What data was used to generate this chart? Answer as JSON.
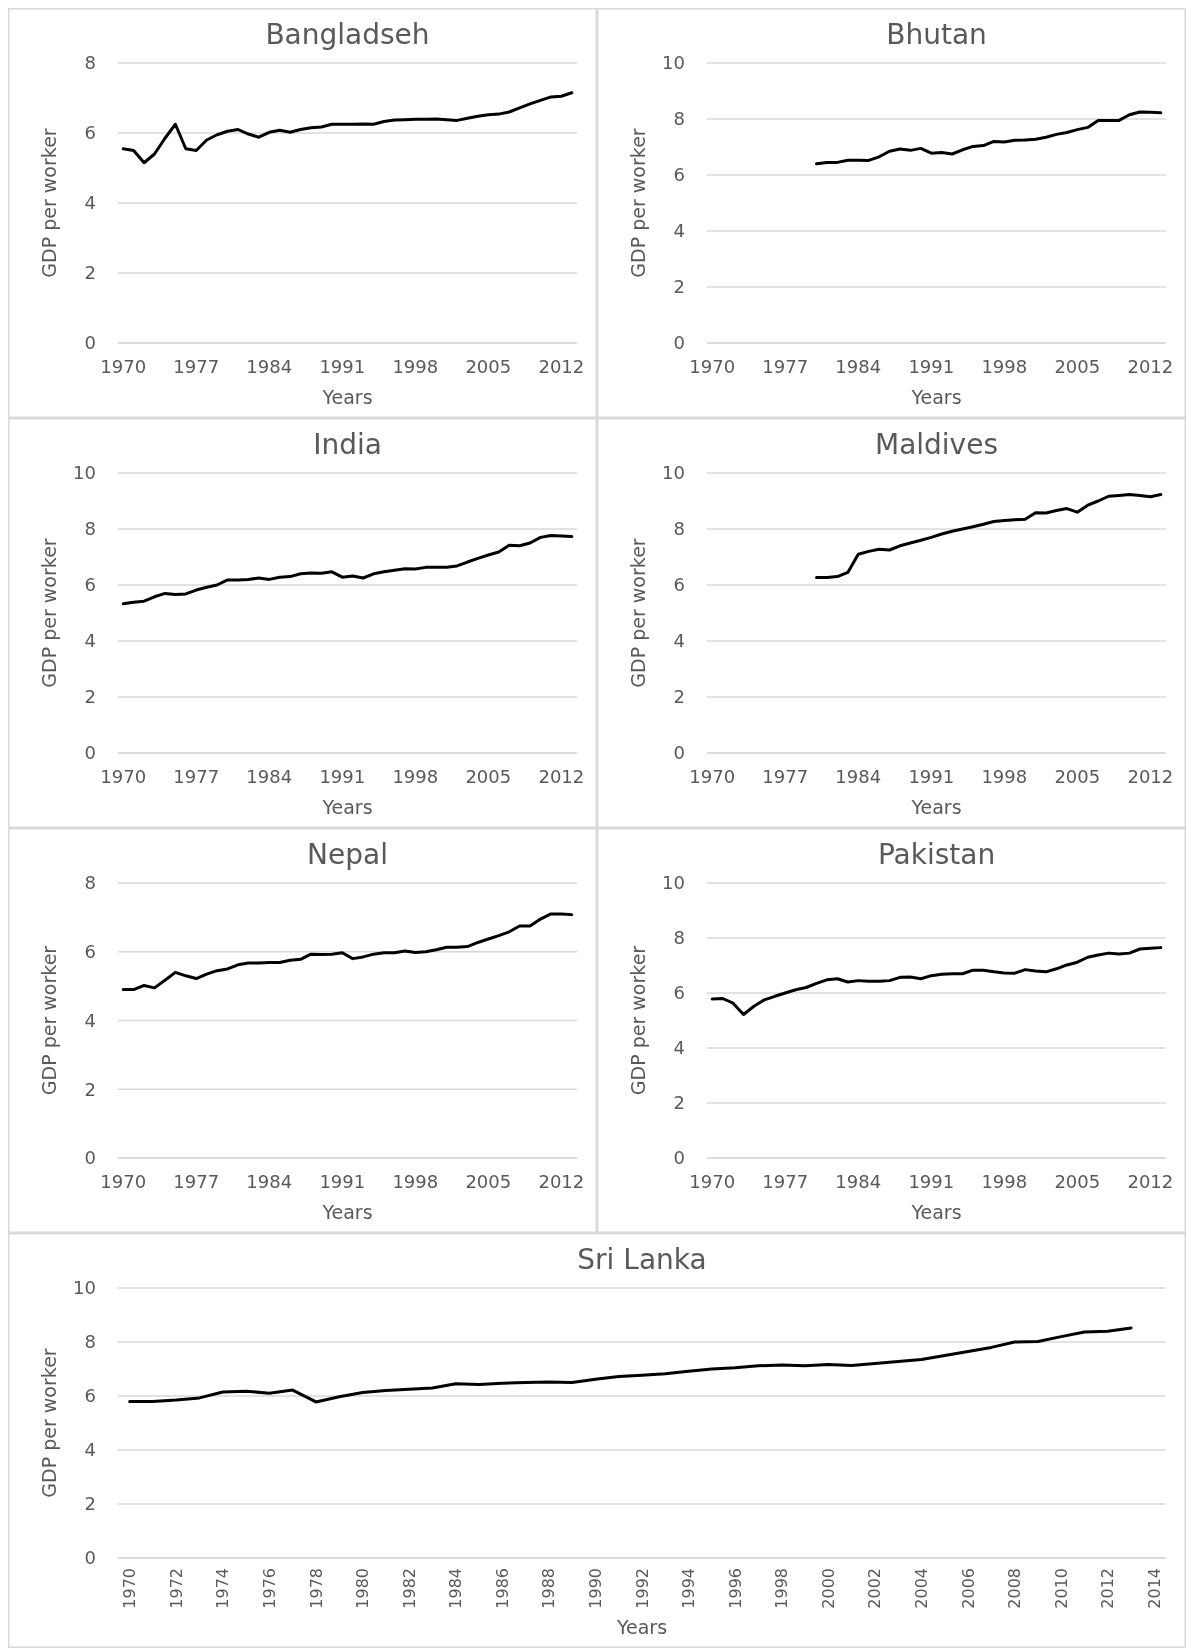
{
  "chart_data": [
    {
      "type": "line",
      "title": "Bangladseh",
      "xlabel": "Years",
      "ylabel": "GDP per worker",
      "x": [
        1970,
        1971,
        1972,
        1973,
        1974,
        1975,
        1976,
        1977,
        1978,
        1979,
        1980,
        1981,
        1982,
        1983,
        1984,
        1985,
        1986,
        1987,
        1988,
        1989,
        1990,
        1991,
        1992,
        1993,
        1994,
        1995,
        1996,
        1997,
        1998,
        1999,
        2000,
        2001,
        2002,
        2003,
        2004,
        2005,
        2006,
        2007,
        2008,
        2009,
        2010,
        2011,
        2012,
        2013
      ],
      "series": [
        {
          "color": "#000000",
          "values": [
            5.55,
            5.5,
            5.15,
            5.4,
            5.85,
            6.25,
            5.55,
            5.5,
            5.8,
            5.95,
            6.05,
            6.1,
            5.97,
            5.88,
            6.02,
            6.08,
            6.02,
            6.1,
            6.15,
            6.17,
            6.25,
            6.25,
            6.25,
            6.26,
            6.25,
            6.33,
            6.37,
            6.38,
            6.39,
            6.39,
            6.4,
            6.38,
            6.36,
            6.42,
            6.48,
            6.52,
            6.54,
            6.6,
            6.72,
            6.83,
            6.93,
            7.03,
            7.05,
            7.15
          ]
        }
      ],
      "xlim": [
        1969.5,
        2013.5
      ],
      "xticks": [
        1970,
        1977,
        1984,
        1991,
        1998,
        2005,
        2012
      ],
      "ylim": [
        0,
        8
      ],
      "yticks": [
        0,
        2,
        4,
        6,
        8
      ],
      "grid": "y",
      "legend": false
    },
    {
      "type": "line",
      "title": "Bhutan",
      "xlabel": "Years",
      "ylabel": "GDP per worker",
      "x": [
        1980,
        1981,
        1982,
        1983,
        1984,
        1985,
        1986,
        1987,
        1988,
        1989,
        1990,
        1991,
        1992,
        1993,
        1994,
        1995,
        1996,
        1997,
        1998,
        1999,
        2000,
        2001,
        2002,
        2003,
        2004,
        2005,
        2006,
        2007,
        2008,
        2009,
        2010,
        2011,
        2012,
        2013
      ],
      "series": [
        {
          "color": "#000000",
          "values": [
            6.4,
            6.45,
            6.45,
            6.53,
            6.53,
            6.52,
            6.65,
            6.85,
            6.93,
            6.88,
            6.95,
            6.78,
            6.8,
            6.75,
            6.9,
            7.02,
            7.05,
            7.2,
            7.18,
            7.24,
            7.25,
            7.28,
            7.35,
            7.45,
            7.52,
            7.62,
            7.7,
            7.95,
            7.95,
            7.95,
            8.15,
            8.25,
            8.24,
            8.22
          ]
        }
      ],
      "xlim": [
        1969.5,
        2013.5
      ],
      "xticks": [
        1970,
        1977,
        1984,
        1991,
        1998,
        2005,
        2012
      ],
      "ylim": [
        0,
        10
      ],
      "yticks": [
        0,
        2,
        4,
        6,
        8,
        10
      ],
      "grid": "y",
      "legend": false
    },
    {
      "type": "line",
      "title": "India",
      "xlabel": "Years",
      "ylabel": "GDP per worker",
      "x": [
        1970,
        1971,
        1972,
        1973,
        1974,
        1975,
        1976,
        1977,
        1978,
        1979,
        1980,
        1981,
        1982,
        1983,
        1984,
        1985,
        1986,
        1987,
        1988,
        1989,
        1990,
        1991,
        1992,
        1993,
        1994,
        1995,
        1996,
        1997,
        1998,
        1999,
        2000,
        2001,
        2002,
        2003,
        2004,
        2005,
        2006,
        2007,
        2008,
        2009,
        2010,
        2011,
        2012,
        2013
      ],
      "series": [
        {
          "color": "#000000",
          "values": [
            5.33,
            5.38,
            5.42,
            5.58,
            5.7,
            5.66,
            5.68,
            5.82,
            5.92,
            6.0,
            6.18,
            6.18,
            6.2,
            6.25,
            6.2,
            6.28,
            6.3,
            6.4,
            6.43,
            6.42,
            6.47,
            6.28,
            6.32,
            6.25,
            6.4,
            6.47,
            6.53,
            6.58,
            6.57,
            6.63,
            6.63,
            6.63,
            6.68,
            6.82,
            6.95,
            7.07,
            7.18,
            7.42,
            7.4,
            7.5,
            7.7,
            7.77,
            7.75,
            7.73
          ]
        }
      ],
      "xlim": [
        1969.5,
        2013.5
      ],
      "xticks": [
        1970,
        1977,
        1984,
        1991,
        1998,
        2005,
        2012
      ],
      "ylim": [
        0,
        10
      ],
      "yticks": [
        0,
        2,
        4,
        6,
        8,
        10
      ],
      "grid": "y",
      "legend": false
    },
    {
      "type": "line",
      "title": "Maldives",
      "xlabel": "Years",
      "ylabel": "GDP per worker",
      "x": [
        1980,
        1981,
        1982,
        1983,
        1984,
        1985,
        1986,
        1987,
        1988,
        1989,
        1990,
        1991,
        1992,
        1993,
        1994,
        1995,
        1996,
        1997,
        1998,
        1999,
        2000,
        2001,
        2002,
        2003,
        2004,
        2005,
        2006,
        2007,
        2008,
        2009,
        2010,
        2011,
        2012,
        2013
      ],
      "series": [
        {
          "color": "#000000",
          "values": [
            6.27,
            6.27,
            6.3,
            6.45,
            7.1,
            7.2,
            7.28,
            7.25,
            7.4,
            7.5,
            7.6,
            7.7,
            7.82,
            7.92,
            8.0,
            8.08,
            8.17,
            8.27,
            8.3,
            8.33,
            8.35,
            8.58,
            8.57,
            8.66,
            8.73,
            8.6,
            8.85,
            9.0,
            9.17,
            9.2,
            9.23,
            9.2,
            9.15,
            9.23
          ]
        }
      ],
      "xlim": [
        1969.5,
        2013.5
      ],
      "xticks": [
        1970,
        1977,
        1984,
        1991,
        1998,
        2005,
        2012
      ],
      "ylim": [
        0,
        10
      ],
      "yticks": [
        0,
        2,
        4,
        6,
        8,
        10
      ],
      "grid": "y",
      "legend": false
    },
    {
      "type": "line",
      "title": "Nepal",
      "xlabel": "Years",
      "ylabel": "GDP per worker",
      "x": [
        1970,
        1971,
        1972,
        1973,
        1974,
        1975,
        1976,
        1977,
        1978,
        1979,
        1980,
        1981,
        1982,
        1983,
        1984,
        1985,
        1986,
        1987,
        1988,
        1989,
        1990,
        1991,
        1992,
        1993,
        1994,
        1995,
        1996,
        1997,
        1998,
        1999,
        2000,
        2001,
        2002,
        2003,
        2004,
        2005,
        2006,
        2007,
        2008,
        2009,
        2010,
        2011,
        2012,
        2013
      ],
      "series": [
        {
          "color": "#000000",
          "values": [
            4.9,
            4.9,
            5.02,
            4.95,
            5.17,
            5.4,
            5.3,
            5.22,
            5.35,
            5.45,
            5.5,
            5.62,
            5.67,
            5.67,
            5.69,
            5.69,
            5.75,
            5.78,
            5.93,
            5.92,
            5.93,
            5.97,
            5.8,
            5.85,
            5.93,
            5.97,
            5.97,
            6.02,
            5.98,
            6.0,
            6.06,
            6.13,
            6.13,
            6.15,
            6.27,
            6.37,
            6.47,
            6.58,
            6.75,
            6.75,
            6.95,
            7.1,
            7.1,
            7.08
          ]
        }
      ],
      "xlim": [
        1969.5,
        2013.5
      ],
      "xticks": [
        1970,
        1977,
        1984,
        1991,
        1998,
        2005,
        2012
      ],
      "ylim": [
        0,
        8
      ],
      "yticks": [
        0,
        2,
        4,
        6,
        8
      ],
      "grid": "y",
      "legend": false
    },
    {
      "type": "line",
      "title": "Pakistan",
      "xlabel": "Years",
      "ylabel": "GDP per worker",
      "x": [
        1970,
        1971,
        1972,
        1973,
        1974,
        1975,
        1976,
        1977,
        1978,
        1979,
        1980,
        1981,
        1982,
        1983,
        1984,
        1985,
        1986,
        1987,
        1988,
        1989,
        1990,
        1991,
        1992,
        1993,
        1994,
        1995,
        1996,
        1997,
        1998,
        1999,
        2000,
        2001,
        2002,
        2003,
        2004,
        2005,
        2006,
        2007,
        2008,
        2009,
        2010,
        2011,
        2012,
        2013
      ],
      "series": [
        {
          "color": "#000000",
          "values": [
            5.78,
            5.8,
            5.63,
            5.22,
            5.52,
            5.75,
            5.88,
            6.0,
            6.12,
            6.2,
            6.35,
            6.48,
            6.52,
            6.4,
            6.45,
            6.43,
            6.43,
            6.45,
            6.57,
            6.58,
            6.52,
            6.63,
            6.68,
            6.7,
            6.7,
            6.83,
            6.83,
            6.77,
            6.73,
            6.72,
            6.85,
            6.8,
            6.77,
            6.88,
            7.02,
            7.12,
            7.3,
            7.38,
            7.45,
            7.42,
            7.45,
            7.6,
            7.63,
            7.65
          ]
        }
      ],
      "xlim": [
        1969.5,
        2013.5
      ],
      "xticks": [
        1970,
        1977,
        1984,
        1991,
        1998,
        2005,
        2012
      ],
      "ylim": [
        0,
        10
      ],
      "yticks": [
        0,
        2,
        4,
        6,
        8,
        10
      ],
      "grid": "y",
      "legend": false
    },
    {
      "type": "line",
      "title": "Sri Lanka",
      "xlabel": "Years",
      "ylabel": "GDP per worker",
      "x": [
        1970,
        1971,
        1972,
        1973,
        1974,
        1975,
        1976,
        1977,
        1978,
        1979,
        1980,
        1981,
        1982,
        1983,
        1984,
        1985,
        1986,
        1987,
        1988,
        1989,
        1990,
        1991,
        1992,
        1993,
        1994,
        1995,
        1996,
        1997,
        1998,
        1999,
        2000,
        2001,
        2002,
        2003,
        2004,
        2005,
        2006,
        2007,
        2008,
        2009,
        2010,
        2011,
        2012,
        2013
      ],
      "series": [
        {
          "color": "#000000",
          "values": [
            5.8,
            5.8,
            5.85,
            5.93,
            6.15,
            6.18,
            6.1,
            6.22,
            5.78,
            5.97,
            6.13,
            6.2,
            6.25,
            6.3,
            6.45,
            6.43,
            6.47,
            6.5,
            6.52,
            6.5,
            6.62,
            6.72,
            6.77,
            6.82,
            6.92,
            7.0,
            7.05,
            7.12,
            7.15,
            7.12,
            7.17,
            7.13,
            7.2,
            7.28,
            7.35,
            7.5,
            7.65,
            7.8,
            8.0,
            8.02,
            8.2,
            8.37,
            8.4,
            8.52
          ]
        }
      ],
      "xlim": [
        1969.5,
        2014.5
      ],
      "xticks": [
        1970,
        1972,
        1974,
        1976,
        1978,
        1980,
        1982,
        1984,
        1986,
        1988,
        1990,
        1992,
        1994,
        1996,
        1998,
        2000,
        2002,
        2004,
        2006,
        2008,
        2010,
        2012,
        2014
      ],
      "ylim": [
        0,
        10
      ],
      "yticks": [
        0,
        2,
        4,
        6,
        8,
        10
      ],
      "grid": "y",
      "legend": false
    }
  ]
}
